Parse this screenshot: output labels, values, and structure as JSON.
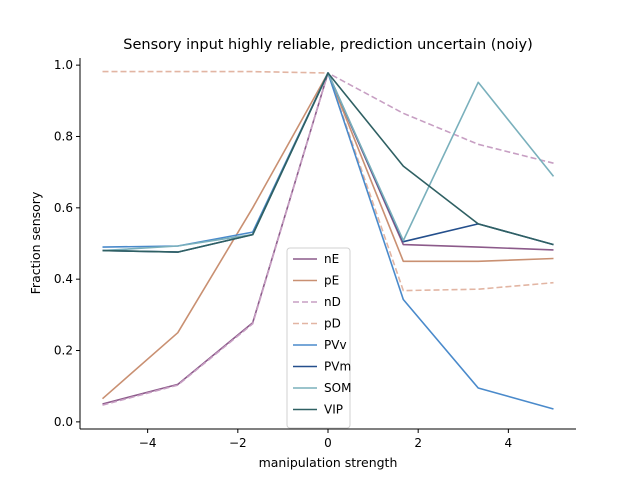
{
  "chart_data": {
    "type": "line",
    "title": "Sensory input highly reliable, prediction uncertain (noiy)",
    "xlabel": "manipulation strength",
    "ylabel": "Fraction sensory",
    "xlim": [
      -5.5,
      5.5
    ],
    "ylim": [
      -0.02,
      1.02
    ],
    "x_ticks": [
      -4,
      -2,
      0,
      2,
      4
    ],
    "y_ticks": [
      0.0,
      0.2,
      0.4,
      0.6,
      0.8,
      1.0
    ],
    "x_tick_labels": [
      "−4",
      "−2",
      "0",
      "2",
      "4"
    ],
    "y_tick_labels": [
      "0.0",
      "0.2",
      "0.4",
      "0.6",
      "0.8",
      "1.0"
    ],
    "grid": false,
    "legend_position": "center-bottom",
    "x": [
      -5,
      -3.33,
      -1.67,
      0,
      1.67,
      3.33,
      5
    ],
    "series": [
      {
        "name": "nE",
        "color": "#8c5a8a",
        "dash": "solid",
        "values": [
          0.05,
          0.105,
          0.278,
          0.978,
          0.497,
          0.49,
          0.482
        ]
      },
      {
        "name": "pE",
        "color": "#c99072",
        "dash": "solid",
        "values": [
          0.065,
          0.25,
          0.6,
          0.978,
          0.45,
          0.45,
          0.458
        ]
      },
      {
        "name": "nD",
        "color": "#c79fc3",
        "dash": "dashed",
        "values": [
          0.047,
          0.103,
          0.275,
          0.978,
          0.865,
          0.778,
          0.725
        ]
      },
      {
        "name": "pD",
        "color": "#e2b5a3",
        "dash": "dashed",
        "values": [
          0.982,
          0.982,
          0.982,
          0.978,
          0.368,
          0.372,
          0.39
        ]
      },
      {
        "name": "PVv",
        "color": "#4a8acb",
        "dash": "solid",
        "values": [
          0.49,
          0.493,
          0.532,
          0.978,
          0.343,
          0.095,
          0.036
        ]
      },
      {
        "name": "PVm",
        "color": "#244f8c",
        "dash": "solid",
        "values": [
          0.48,
          0.476,
          0.525,
          0.978,
          0.505,
          0.555,
          0.497
        ]
      },
      {
        "name": "SOM",
        "color": "#7ab0bc",
        "dash": "solid",
        "values": [
          0.48,
          0.493,
          0.525,
          0.978,
          0.508,
          0.952,
          0.688
        ]
      },
      {
        "name": "VIP",
        "color": "#2f6063",
        "dash": "solid",
        "values": [
          0.48,
          0.476,
          0.525,
          0.978,
          0.717,
          0.555,
          0.497
        ]
      }
    ]
  }
}
